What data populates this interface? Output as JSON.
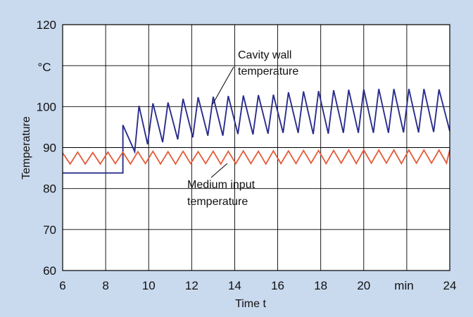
{
  "chart_data": {
    "type": "line",
    "xlabel": "Time t",
    "ylabel": "Temperature",
    "x_unit_label": "min",
    "y_unit_label": "°C",
    "xlim": [
      6,
      24
    ],
    "ylim": [
      60,
      120
    ],
    "x_ticks": [
      6,
      8,
      10,
      12,
      14,
      16,
      18,
      20,
      24
    ],
    "x_tick_labels": [
      "6",
      "8",
      "10",
      "12",
      "14",
      "16",
      "18",
      "20",
      "24"
    ],
    "y_ticks": [
      60,
      70,
      80,
      90,
      100,
      120
    ],
    "y_tick_labels": [
      "60",
      "70",
      "80",
      "90",
      "100",
      "120"
    ],
    "grid": true,
    "colors": {
      "background": "#c9d9ee",
      "plot_area": "#ffffff",
      "grid": "#000000"
    },
    "annotations": [
      {
        "lines": [
          "Cavity wall",
          "temperature"
        ],
        "series": "Cavity wall temperature"
      },
      {
        "lines": [
          "Medium input",
          "temperature"
        ],
        "series": "Medium input temperature"
      }
    ],
    "series": [
      {
        "name": "Cavity wall temperature",
        "color": "#2a2d8c",
        "x": [
          6.0,
          8.8,
          8.8,
          9.35,
          9.55,
          9.95,
          10.2,
          10.65,
          10.9,
          11.35,
          11.6,
          12.05,
          12.3,
          12.75,
          13.0,
          13.45,
          13.7,
          14.15,
          14.4,
          14.85,
          15.1,
          15.55,
          15.8,
          16.25,
          16.5,
          16.95,
          17.2,
          17.65,
          17.9,
          18.35,
          18.6,
          19.05,
          19.3,
          19.75,
          20.0,
          20.45,
          20.7,
          21.15,
          21.4,
          21.85,
          22.1,
          22.55,
          22.8,
          23.25,
          23.5,
          24.0
        ],
        "y": [
          83.8,
          83.8,
          95.5,
          89.0,
          100.2,
          90.8,
          100.8,
          91.3,
          101.0,
          92.0,
          101.9,
          92.5,
          102.3,
          92.9,
          102.4,
          92.9,
          102.6,
          93.3,
          102.7,
          93.2,
          102.8,
          93.4,
          102.9,
          93.6,
          103.5,
          93.6,
          103.7,
          93.3,
          103.8,
          93.4,
          104.0,
          93.6,
          104.1,
          93.6,
          104.2,
          93.6,
          104.3,
          93.6,
          104.3,
          93.7,
          104.3,
          93.7,
          104.3,
          93.8,
          104.2,
          94.0
        ]
      },
      {
        "name": "Medium input temperature",
        "color": "#e55a36",
        "x": [
          6.0,
          6.35,
          6.7,
          7.05,
          7.4,
          7.75,
          8.1,
          8.45,
          8.8,
          9.15,
          9.5,
          9.85,
          10.2,
          10.55,
          10.9,
          11.25,
          11.6,
          11.95,
          12.3,
          12.65,
          13.0,
          13.35,
          13.7,
          14.05,
          14.4,
          14.75,
          15.1,
          15.45,
          15.8,
          16.15,
          16.5,
          16.85,
          17.2,
          17.55,
          17.9,
          18.25,
          18.6,
          18.95,
          19.3,
          19.65,
          20.0,
          20.35,
          20.7,
          21.05,
          21.4,
          21.75,
          22.1,
          22.45,
          22.8,
          23.15,
          23.5,
          23.85,
          24.0
        ],
        "y": [
          88.7,
          86.0,
          88.9,
          86.0,
          88.8,
          86.0,
          88.9,
          86.1,
          88.9,
          86.0,
          89.0,
          86.1,
          89.1,
          86.0,
          89.0,
          86.0,
          89.1,
          86.1,
          89.0,
          86.1,
          89.1,
          86.0,
          89.1,
          86.1,
          89.2,
          86.1,
          89.1,
          86.0,
          89.2,
          86.1,
          89.2,
          86.1,
          89.3,
          86.2,
          89.3,
          86.1,
          89.3,
          86.2,
          89.4,
          86.1,
          89.4,
          86.2,
          89.4,
          86.2,
          89.4,
          86.1,
          89.4,
          86.2,
          89.4,
          86.2,
          89.4,
          86.2,
          89.5
        ]
      }
    ]
  }
}
